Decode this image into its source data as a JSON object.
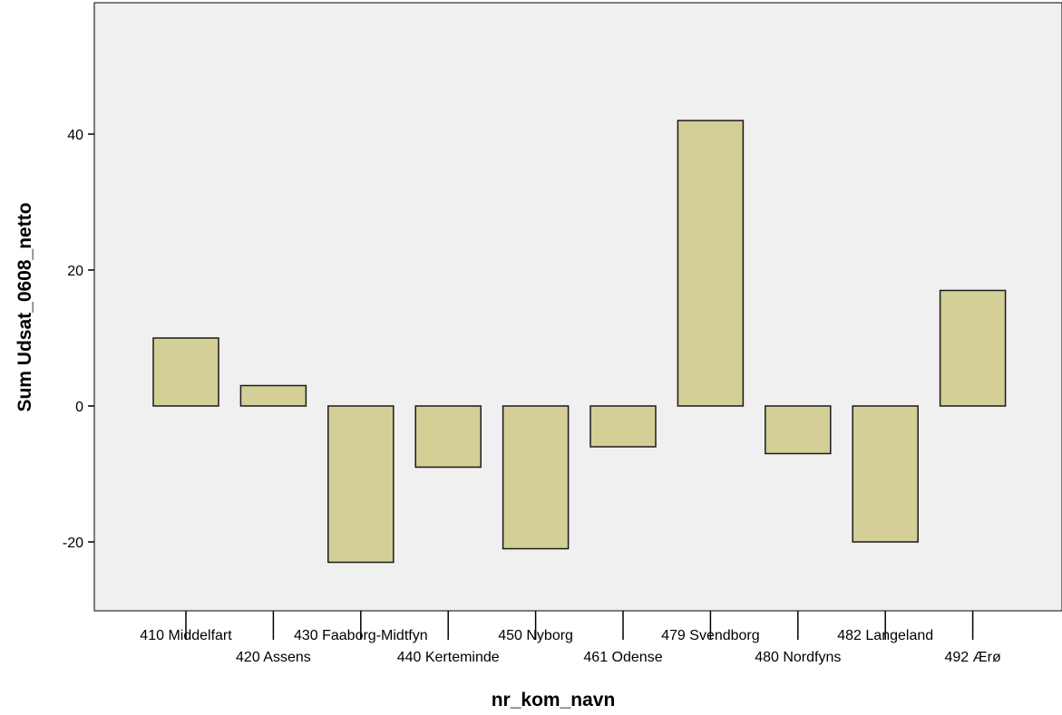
{
  "chart_data": {
    "type": "bar",
    "title": "",
    "xlabel": "nr_kom_navn",
    "ylabel": "Sum Udsat_0608_netto",
    "categories": [
      "410 Middelfart",
      "420 Assens",
      "430 Faaborg-Midtfyn",
      "440 Kerteminde",
      "450 Nyborg",
      "461 Odense",
      "479 Svendborg",
      "480 Nordfyns",
      "482 Langeland",
      "492 Ærø"
    ],
    "values": [
      10,
      3,
      -23,
      -9,
      -21,
      -6,
      42,
      -7,
      -20,
      17
    ],
    "ylim": [
      -30,
      59
    ],
    "yticks": [
      -20,
      0,
      20,
      40
    ],
    "grid": false,
    "colors": {
      "plot_background": "#f0f0f0",
      "bar_fill": "#d4cf97",
      "bar_stroke": "#1a1a1a"
    }
  }
}
